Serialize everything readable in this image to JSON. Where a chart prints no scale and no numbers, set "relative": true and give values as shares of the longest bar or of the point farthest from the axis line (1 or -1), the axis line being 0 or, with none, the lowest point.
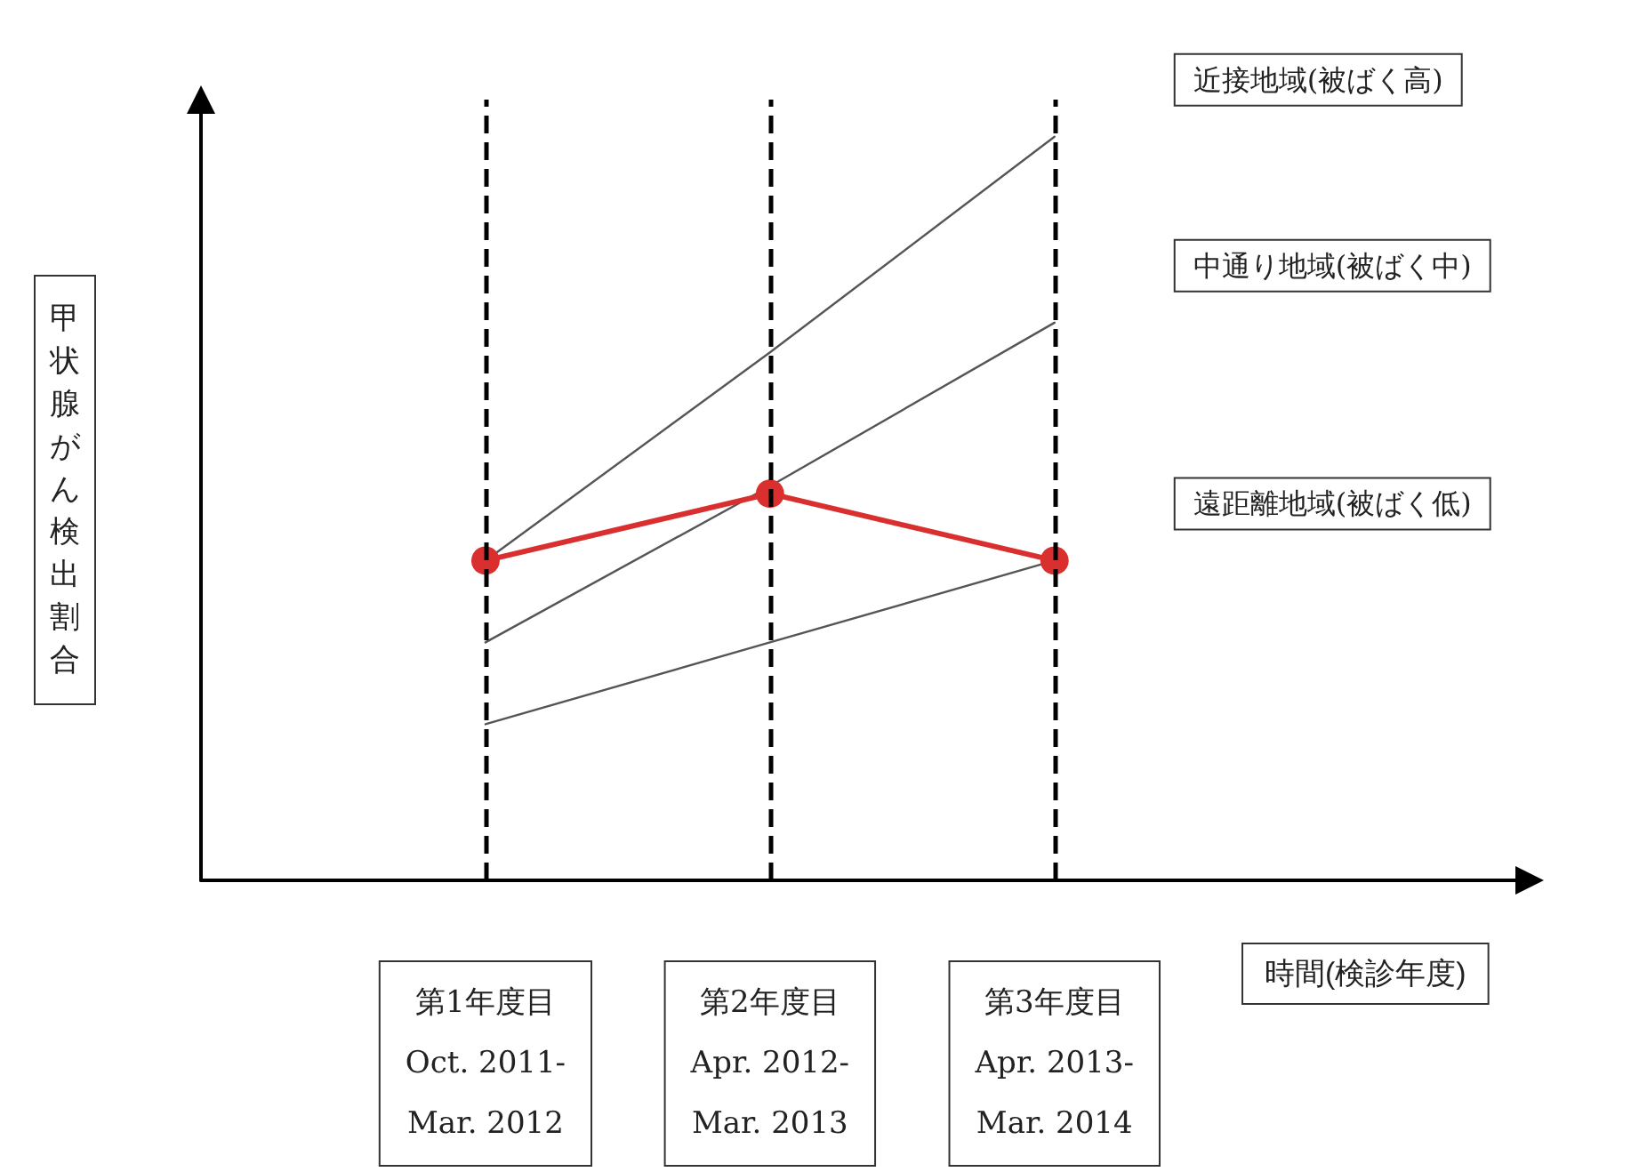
{
  "chart_data": {
    "type": "line",
    "relative": true,
    "ylabel": "甲状腺がん検出割合",
    "xlabel": "時間(検診年度)",
    "categories": [
      "第1年度目\nOct. 2011-\nMar. 2012",
      "第2年度目\nApr. 2012-\nMar. 2013",
      "第3年度目\nApr. 2013-\nMar. 2014"
    ],
    "series": [
      {
        "name": "近接地域(被ばく高)",
        "color": "#555555",
        "values": [
          0.43,
          0.71,
          1
        ],
        "marker": "none"
      },
      {
        "name": "中通り地域(被ばく中)",
        "color": "#555555",
        "values": [
          0.32,
          0.53,
          0.75
        ],
        "marker": "none"
      },
      {
        "name": "遠距離地域(被ばく低)",
        "color": "#555555",
        "values": [
          0.21,
          0.32,
          0.43
        ],
        "marker": "none"
      },
      {
        "color": "#d9302f",
        "values": [
          0.43,
          0.52,
          0.43
        ],
        "marker": "circle"
      }
    ],
    "ref_lines": [
      {
        "axis": "x",
        "value": "第1年度目\nOct. 2011-\nMar. 2012",
        "color": "#000000",
        "line_style": "dashed"
      },
      {
        "axis": "x",
        "value": "第2年度目\nApr. 2012-\nMar. 2013",
        "color": "#000000",
        "line_style": "dashed"
      },
      {
        "axis": "x",
        "value": "第3年度目\nApr. 2013-\nMar. 2014",
        "color": "#000000",
        "line_style": "dashed"
      }
    ],
    "grid": false,
    "legend": false,
    "tick_labels": "x",
    "line_style": "solid"
  }
}
